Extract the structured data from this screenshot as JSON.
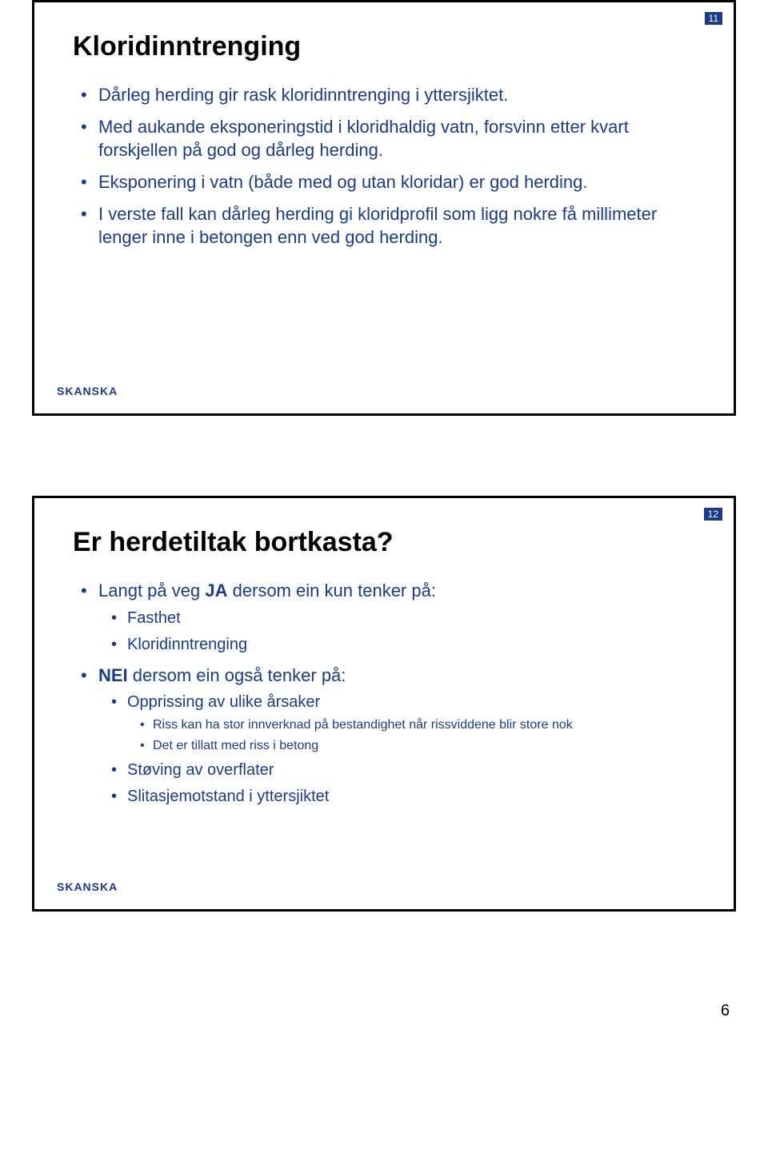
{
  "page_number": "6",
  "accent_color": "#1b3a8a",
  "logo_text": "SKANSKA",
  "slides": [
    {
      "number": "11",
      "title": "Kloridinntrenging",
      "bullets_l1": [
        {
          "text": "Dårleg herding gir rask kloridinntrenging i yttersjiktet."
        },
        {
          "text": "Med aukande eksponeringstid i kloridhaldig vatn, forsvinn etter kvart forskjellen på god og dårleg herding."
        },
        {
          "text": "Eksponering i vatn (både med og utan kloridar) er god herding."
        },
        {
          "text": "I verste fall kan dårleg herding gi kloridprofil som ligg nokre få millimeter lenger inne i betongen enn ved god herding."
        }
      ]
    },
    {
      "number": "12",
      "title": "Er herdetiltak bortkasta?",
      "answer_yes_prefix": "Langt på veg ",
      "answer_yes_bold": "JA",
      "answer_yes_suffix": " dersom ein kun tenker på:",
      "yes_sub": [
        "Fasthet",
        "Kloridinntrenging"
      ],
      "answer_no_bold": "NEI",
      "answer_no_suffix": " dersom ein også tenker på:",
      "no_sub": [
        {
          "text": "Opprissing av ulike årsaker",
          "sub": [
            "Riss kan ha stor innverknad på bestandighet når rissviddene blir store nok",
            "Det er tillatt med riss i betong"
          ]
        },
        {
          "text": "Støving av overflater"
        },
        {
          "text": "Slitasjemotstand i yttersjiktet"
        }
      ]
    }
  ]
}
